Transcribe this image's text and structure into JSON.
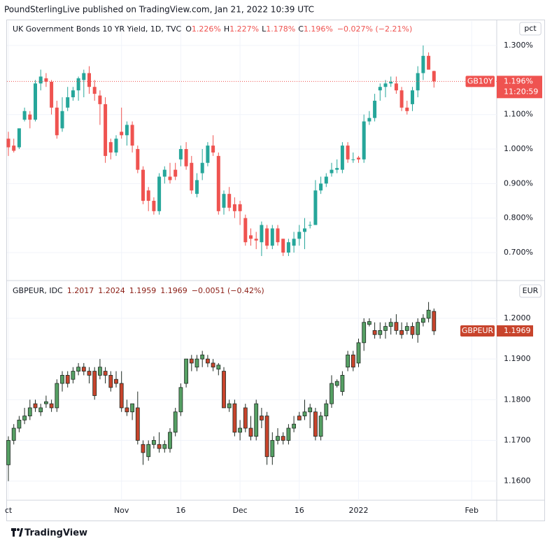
{
  "page_title": "PoundSterlingLive published on TradingView.com, Jan 21, 2022 10:39 UTC",
  "footer": "TradingView",
  "x_axis": {
    "x": [
      0,
      1,
      2,
      3,
      4,
      5,
      6,
      7,
      8,
      9,
      10,
      11,
      12,
      13,
      14,
      15,
      16,
      17,
      18,
      19,
      20,
      21,
      22,
      23,
      24,
      25,
      26,
      27,
      28,
      29,
      30,
      31,
      32,
      33,
      34,
      35,
      36,
      37,
      38,
      39,
      40,
      41,
      42,
      43,
      44,
      45,
      46,
      47,
      48,
      49,
      50,
      51,
      52,
      53,
      54,
      55,
      56,
      57,
      58,
      59,
      60,
      61,
      62,
      63,
      64,
      65,
      66,
      67,
      68,
      69,
      70,
      71,
      72,
      73,
      74,
      75,
      76,
      77,
      78,
      79
    ],
    "xlim": [
      -0.26,
      90.65
    ],
    "xticks": [
      {
        "value": 0,
        "label": "ct"
      },
      {
        "value": 21,
        "label": "Nov"
      },
      {
        "value": 32,
        "label": "16"
      },
      {
        "value": 43,
        "label": "Dec"
      },
      {
        "value": 54,
        "label": "16"
      },
      {
        "value": 65,
        "label": "2022"
      },
      {
        "value": 86,
        "label": "Feb"
      }
    ]
  },
  "chart_data": [
    {
      "type": "candlestick",
      "legend": {
        "name": "UK Government Bonds 10 YR Yield, 1D, TVC",
        "items": [
          {
            "key": "O",
            "value": "1.226%"
          },
          {
            "key": "H",
            "value": "1.227%"
          },
          {
            "key": "L",
            "value": "1.178%"
          },
          {
            "key": "C",
            "value": "1.196%"
          }
        ],
        "change": "−0.027% (−2.21%)"
      },
      "unit": "pct",
      "price_tag": {
        "symbol": "GB10Y",
        "value": "1.196%",
        "countdown": "11:20:59"
      },
      "up_color": "#26a69a",
      "down_color": "#ef5350",
      "ylim": [
        0.621,
        1.371
      ],
      "yticks": [
        {
          "value": 1.3,
          "label": "1.300%"
        },
        {
          "value": 1.1,
          "label": "1.100%"
        },
        {
          "value": 1.0,
          "label": "1.000%"
        },
        {
          "value": 0.9,
          "label": "0.900%"
        },
        {
          "value": 0.8,
          "label": "0.800%"
        },
        {
          "value": 0.7,
          "label": "0.700%"
        }
      ],
      "grid": true,
      "open": [
        1.03,
        1.01,
        1.005,
        1.085,
        1.1,
        1.085,
        1.19,
        1.205,
        1.195,
        1.12,
        1.06,
        1.12,
        1.15,
        1.17,
        1.2,
        1.22,
        1.18,
        1.155,
        1.13,
        1.02,
        0.99,
        1.05,
        1.04,
        1.07,
        1.0,
        0.94,
        0.88,
        0.85,
        0.82,
        0.92,
        0.92,
        0.94,
        0.97,
        1.0,
        0.96,
        0.87,
        0.93,
        0.96,
        1.01,
        0.98,
        0.83,
        0.87,
        0.84,
        0.84,
        0.8,
        0.75,
        0.74,
        0.73,
        0.77,
        0.72,
        0.77,
        0.74,
        0.7,
        0.72,
        0.74,
        0.76,
        0.78,
        0.78,
        0.88,
        0.9,
        0.93,
        0.94,
        0.94,
        1.01,
        0.97,
        0.975,
        0.97,
        1.08,
        1.09,
        1.17,
        1.18,
        1.19,
        1.19,
        1.17,
        1.12,
        1.13,
        1.17,
        1.22,
        1.27,
        1.226
      ],
      "high": [
        1.05,
        1.03,
        1.06,
        1.12,
        1.11,
        1.2,
        1.23,
        1.22,
        1.2,
        1.14,
        1.15,
        1.18,
        1.18,
        1.21,
        1.23,
        1.24,
        1.2,
        1.17,
        1.15,
        1.03,
        1.04,
        1.12,
        1.08,
        1.08,
        1.01,
        0.95,
        0.89,
        0.86,
        0.93,
        0.95,
        0.96,
        0.96,
        1.01,
        1.02,
        0.98,
        0.93,
        1.0,
        1.02,
        1.04,
        0.99,
        0.88,
        0.89,
        0.86,
        0.85,
        0.81,
        0.77,
        0.76,
        0.79,
        0.78,
        0.78,
        0.78,
        0.74,
        0.74,
        0.76,
        0.78,
        0.8,
        0.79,
        0.91,
        0.92,
        0.93,
        0.96,
        0.97,
        1.02,
        1.02,
        0.99,
        0.98,
        1.1,
        1.11,
        1.16,
        1.19,
        1.2,
        1.21,
        1.21,
        1.18,
        1.14,
        1.18,
        1.24,
        1.3,
        1.28,
        1.227
      ],
      "low": [
        0.98,
        0.99,
        1.0,
        1.08,
        1.06,
        1.08,
        1.17,
        1.18,
        1.1,
        1.03,
        1.05,
        1.11,
        1.14,
        1.14,
        1.15,
        1.16,
        1.14,
        1.07,
        0.96,
        0.97,
        0.98,
        1.03,
        1.01,
        0.99,
        0.93,
        0.84,
        0.82,
        0.81,
        0.81,
        0.9,
        0.9,
        0.91,
        0.95,
        0.94,
        0.87,
        0.86,
        0.91,
        0.95,
        0.98,
        0.81,
        0.81,
        0.82,
        0.8,
        0.78,
        0.72,
        0.72,
        0.71,
        0.69,
        0.71,
        0.71,
        0.72,
        0.69,
        0.69,
        0.7,
        0.72,
        0.71,
        0.77,
        0.78,
        0.87,
        0.89,
        0.92,
        0.93,
        0.93,
        0.96,
        0.96,
        0.96,
        0.96,
        1.07,
        1.08,
        1.14,
        1.15,
        1.18,
        1.16,
        1.11,
        1.1,
        1.11,
        1.15,
        1.2,
        1.23,
        1.178
      ],
      "close": [
        1.005,
        0.995,
        1.06,
        1.11,
        1.085,
        1.19,
        1.21,
        1.195,
        1.12,
        1.04,
        1.11,
        1.15,
        1.17,
        1.205,
        1.22,
        1.18,
        1.16,
        1.13,
        0.98,
        0.99,
        1.03,
        1.04,
        1.07,
        1.01,
        0.94,
        0.85,
        0.85,
        0.82,
        0.92,
        0.94,
        0.91,
        0.92,
        1.0,
        0.95,
        0.88,
        0.91,
        0.96,
        1.01,
        0.99,
        0.82,
        0.87,
        0.83,
        0.82,
        0.82,
        0.73,
        0.74,
        0.735,
        0.78,
        0.72,
        0.77,
        0.73,
        0.7,
        0.73,
        0.74,
        0.76,
        0.77,
        0.78,
        0.88,
        0.9,
        0.92,
        0.94,
        0.945,
        1.01,
        0.97,
        0.97,
        0.97,
        1.08,
        1.09,
        1.14,
        1.18,
        1.19,
        1.195,
        1.17,
        1.12,
        1.11,
        1.17,
        1.22,
        1.27,
        1.23,
        1.196
      ]
    },
    {
      "type": "candlestick",
      "legend": {
        "name": "GBPEUR, IDC",
        "items": [
          {
            "value": "1.2017"
          },
          {
            "value": "1.2024"
          },
          {
            "value": "1.1959"
          },
          {
            "value": "1.1969"
          }
        ],
        "change": "−0.0051 (−0.42%)"
      },
      "unit": "EUR",
      "price_tag": {
        "symbol": "GBPEUR",
        "value": "1.1969"
      },
      "up_color": "#56a064",
      "down_color": "#c8442c",
      "border_color": "#1e2a22",
      "ylim": [
        1.1553,
        1.2091
      ],
      "yticks": [
        {
          "value": 1.2,
          "label": "1.2000"
        },
        {
          "value": 1.19,
          "label": "1.1900"
        },
        {
          "value": 1.18,
          "label": "1.1800"
        },
        {
          "value": 1.17,
          "label": "1.1700"
        },
        {
          "value": 1.16,
          "label": "1.1600"
        }
      ],
      "grid": true,
      "open": [
        1.164,
        1.17,
        1.173,
        1.175,
        1.176,
        1.179,
        1.177,
        1.179,
        1.179,
        1.178,
        1.184,
        1.186,
        1.185,
        1.187,
        1.188,
        1.187,
        1.187,
        1.186,
        1.187,
        1.186,
        1.185,
        1.184,
        1.178,
        1.177,
        1.178,
        1.169,
        1.166,
        1.169,
        1.169,
        1.168,
        1.168,
        1.172,
        1.177,
        1.184,
        1.19,
        1.188,
        1.19,
        1.19,
        1.189,
        1.1875,
        1.187,
        1.178,
        1.179,
        1.172,
        1.178,
        1.173,
        1.171,
        1.176,
        1.176,
        1.166,
        1.17,
        1.171,
        1.17,
        1.173,
        1.176,
        1.176,
        1.177,
        1.177,
        1.171,
        1.176,
        1.179,
        1.1835,
        1.182,
        1.188,
        1.191,
        1.189,
        1.194,
        1.1985,
        1.197,
        1.196,
        1.197,
        1.198,
        1.199,
        1.197,
        1.197,
        1.198,
        1.196,
        1.199,
        1.2,
        1.2017
      ],
      "high": [
        1.171,
        1.174,
        1.176,
        1.178,
        1.18,
        1.18,
        1.179,
        1.181,
        1.18,
        1.185,
        1.187,
        1.187,
        1.188,
        1.189,
        1.189,
        1.188,
        1.188,
        1.19,
        1.188,
        1.187,
        1.187,
        1.187,
        1.18,
        1.179,
        1.182,
        1.17,
        1.17,
        1.171,
        1.172,
        1.17,
        1.173,
        1.178,
        1.184,
        1.19,
        1.191,
        1.191,
        1.192,
        1.191,
        1.19,
        1.189,
        1.188,
        1.18,
        1.18,
        1.175,
        1.179,
        1.176,
        1.18,
        1.178,
        1.177,
        1.172,
        1.173,
        1.172,
        1.174,
        1.176,
        1.177,
        1.18,
        1.179,
        1.178,
        1.177,
        1.18,
        1.186,
        1.185,
        1.187,
        1.192,
        1.192,
        1.195,
        1.2,
        1.2,
        1.199,
        1.199,
        1.199,
        1.2,
        1.201,
        1.199,
        1.199,
        1.199,
        1.2,
        1.201,
        1.204,
        1.2024
      ],
      "low": [
        1.16,
        1.169,
        1.172,
        1.174,
        1.175,
        1.177,
        1.176,
        1.178,
        1.177,
        1.177,
        1.182,
        1.183,
        1.184,
        1.186,
        1.186,
        1.184,
        1.18,
        1.185,
        1.184,
        1.182,
        1.183,
        1.177,
        1.176,
        1.175,
        1.169,
        1.164,
        1.165,
        1.168,
        1.167,
        1.167,
        1.167,
        1.171,
        1.176,
        1.183,
        1.187,
        1.187,
        1.188,
        1.188,
        1.187,
        1.186,
        1.178,
        1.177,
        1.171,
        1.17,
        1.172,
        1.17,
        1.17,
        1.173,
        1.164,
        1.164,
        1.169,
        1.169,
        1.169,
        1.172,
        1.175,
        1.175,
        1.173,
        1.17,
        1.17,
        1.175,
        1.178,
        1.183,
        1.181,
        1.187,
        1.187,
        1.188,
        1.192,
        1.198,
        1.195,
        1.195,
        1.195,
        1.196,
        1.196,
        1.195,
        1.196,
        1.195,
        1.194,
        1.198,
        1.199,
        1.1959
      ],
      "close": [
        1.17,
        1.173,
        1.175,
        1.176,
        1.178,
        1.178,
        1.178,
        1.1795,
        1.178,
        1.184,
        1.186,
        1.184,
        1.187,
        1.188,
        1.187,
        1.186,
        1.181,
        1.188,
        1.186,
        1.183,
        1.184,
        1.178,
        1.177,
        1.179,
        1.17,
        1.167,
        1.169,
        1.17,
        1.168,
        1.169,
        1.172,
        1.177,
        1.183,
        1.19,
        1.189,
        1.19,
        1.191,
        1.189,
        1.188,
        1.1885,
        1.178,
        1.179,
        1.172,
        1.173,
        1.173,
        1.171,
        1.179,
        1.175,
        1.166,
        1.17,
        1.171,
        1.17,
        1.173,
        1.174,
        1.175,
        1.177,
        1.178,
        1.171,
        1.176,
        1.179,
        1.184,
        1.1845,
        1.186,
        1.191,
        1.188,
        1.194,
        1.199,
        1.1992,
        1.196,
        1.197,
        1.198,
        1.199,
        1.197,
        1.196,
        1.198,
        1.196,
        1.199,
        1.2,
        1.202,
        1.1969
      ]
    }
  ]
}
